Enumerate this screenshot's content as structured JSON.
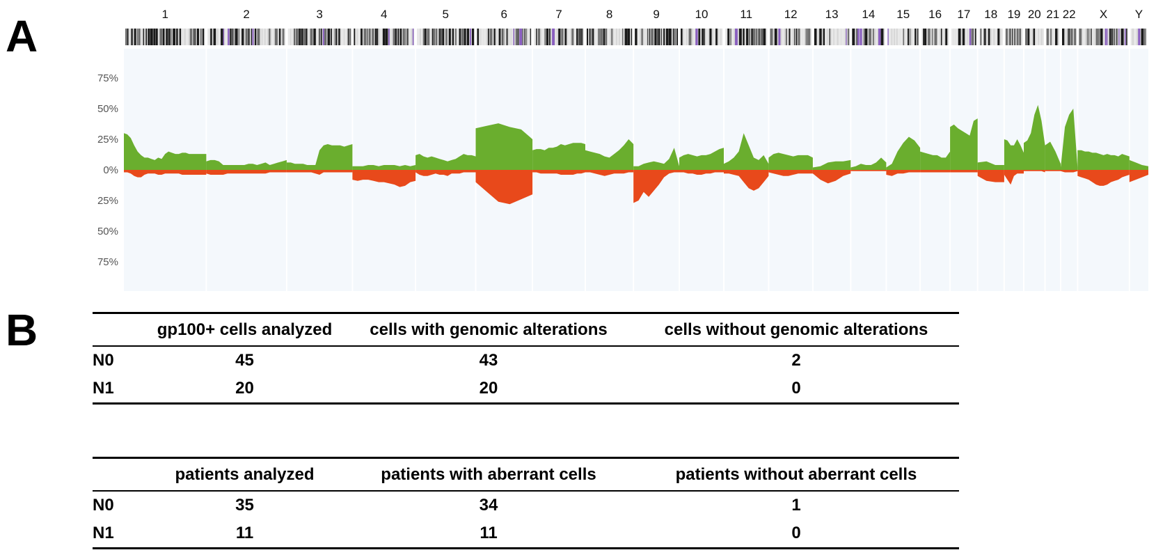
{
  "panels": {
    "a": "A",
    "b": "B"
  },
  "chart_data": {
    "type": "area",
    "title": "",
    "xlabel": "",
    "ylabel": "",
    "chromosomes": [
      "1",
      "2",
      "3",
      "4",
      "5",
      "6",
      "7",
      "8",
      "9",
      "10",
      "11",
      "12",
      "13",
      "14",
      "15",
      "16",
      "17",
      "18",
      "19",
      "20",
      "21",
      "22",
      "X",
      "Y"
    ],
    "chromosome_relative_sizes": [
      248,
      242,
      198,
      190,
      181,
      171,
      159,
      145,
      138,
      134,
      135,
      133,
      114,
      107,
      102,
      90,
      83,
      80,
      59,
      64,
      47,
      51,
      156,
      57
    ],
    "yticks": [
      "75%",
      "50%",
      "25%",
      "0%",
      "25%",
      "50%",
      "75%"
    ],
    "ylim": [
      -75,
      75
    ],
    "grid": true,
    "colors": {
      "gain": "#6aae2e",
      "loss": "#e8491b",
      "background": "#f4f8fc",
      "grid": "#ffffff"
    },
    "series": [
      {
        "name": "gain",
        "values_per_chromosome": [
          [
            30,
            29,
            26,
            20,
            15,
            12,
            10,
            10,
            9,
            8,
            10,
            9,
            13,
            15,
            14,
            13,
            13,
            14,
            14,
            13,
            13,
            13,
            13,
            13,
            13
          ],
          [
            7,
            8,
            8,
            7,
            4,
            4,
            4,
            4,
            4,
            4,
            5,
            5,
            4,
            5,
            6,
            4,
            5,
            6,
            7,
            8
          ],
          [
            6,
            6,
            5,
            5,
            5,
            4,
            4,
            4,
            16,
            20,
            21,
            20,
            20,
            20,
            19,
            20,
            21
          ],
          [
            3,
            3,
            3,
            4,
            4,
            3,
            4,
            4,
            4,
            3,
            4,
            3,
            4
          ],
          [
            12,
            13,
            11,
            10,
            11,
            10,
            9,
            8,
            7,
            8,
            9,
            11,
            13,
            12,
            12,
            11
          ],
          [
            34,
            36,
            38,
            35,
            33,
            25
          ],
          [
            16,
            17,
            17,
            16,
            18,
            18,
            19,
            21,
            20,
            21,
            22,
            22,
            22,
            21
          ],
          [
            16,
            15,
            14,
            13,
            11,
            10,
            13,
            16,
            20,
            25,
            21
          ],
          [
            3,
            3,
            5,
            6,
            7,
            6,
            5,
            9,
            18,
            3
          ],
          [
            10,
            12,
            13,
            12,
            11,
            12,
            12,
            13,
            15,
            17,
            18
          ],
          [
            5,
            7,
            10,
            15,
            30,
            20,
            10,
            8,
            12,
            5
          ],
          [
            10,
            13,
            14,
            13,
            12,
            11,
            12,
            12,
            12,
            10
          ],
          [
            2,
            3,
            6,
            7,
            7,
            8
          ],
          [
            2,
            3,
            5,
            4,
            4,
            6,
            10,
            6
          ],
          [
            2,
            5,
            15,
            22,
            27,
            24,
            18
          ],
          [
            15,
            14,
            13,
            12,
            12,
            10,
            10,
            15
          ],
          [
            35,
            37,
            34,
            32,
            30,
            28,
            40,
            42
          ],
          [
            6,
            7,
            4,
            4
          ],
          [
            25,
            24,
            20,
            20,
            25,
            20,
            14
          ],
          [
            22,
            24,
            30,
            45,
            53,
            40,
            20
          ],
          [
            20,
            23,
            15,
            5
          ],
          [
            2,
            35,
            45,
            50,
            2
          ],
          [
            16,
            16,
            15,
            15,
            14,
            14,
            13,
            12,
            13,
            12,
            12,
            11,
            13,
            12,
            11
          ],
          [
            8,
            6,
            4,
            3
          ]
        ]
      },
      {
        "name": "loss",
        "values_per_chromosome": [
          [
            2,
            2,
            3,
            5,
            6,
            6,
            4,
            3,
            3,
            3,
            4,
            4,
            3,
            3,
            3,
            3,
            3,
            4,
            4,
            4,
            4,
            4,
            4,
            4,
            4
          ],
          [
            3,
            4,
            4,
            4,
            4,
            3,
            3,
            3,
            3,
            3,
            3,
            3,
            3,
            3,
            3,
            2,
            2,
            2,
            2,
            2
          ],
          [
            2,
            2,
            2,
            2,
            2,
            2,
            2,
            3,
            4,
            2,
            2,
            2,
            2,
            2,
            2,
            2,
            2
          ],
          [
            8,
            9,
            8,
            8,
            9,
            10,
            10,
            11,
            12,
            14,
            13,
            10,
            9
          ],
          [
            2,
            4,
            5,
            5,
            4,
            3,
            4,
            4,
            5,
            3,
            3,
            3,
            2,
            2,
            2,
            2
          ],
          [
            10,
            18,
            26,
            28,
            24,
            20
          ],
          [
            2,
            2,
            3,
            3,
            3,
            3,
            3,
            4,
            4,
            4,
            4,
            3,
            3,
            2
          ],
          [
            2,
            2,
            3,
            4,
            5,
            4,
            3,
            3,
            3,
            2,
            2
          ],
          [
            27,
            25,
            18,
            22,
            17,
            12,
            6,
            3,
            2,
            2
          ],
          [
            2,
            2,
            3,
            3,
            4,
            4,
            3,
            3,
            2,
            2,
            2
          ],
          [
            3,
            3,
            4,
            5,
            10,
            15,
            17,
            15,
            10,
            5
          ],
          [
            2,
            3,
            4,
            5,
            5,
            4,
            3,
            3,
            3,
            3
          ],
          [
            3,
            8,
            11,
            9,
            5,
            3
          ],
          [
            1,
            1,
            1,
            1,
            1,
            1,
            1,
            1
          ],
          [
            4,
            5,
            3,
            3,
            2,
            2,
            2
          ],
          [
            2,
            2,
            2,
            2,
            2,
            2,
            2,
            2
          ],
          [
            2,
            2,
            2,
            2,
            2,
            2,
            2,
            2
          ],
          [
            5,
            9,
            10,
            10
          ],
          [
            4,
            8,
            12,
            5,
            3,
            3,
            3
          ],
          [
            1,
            1,
            1,
            1,
            1,
            1,
            2
          ],
          [
            1,
            1,
            1,
            1
          ],
          [
            1,
            2,
            2,
            2,
            1
          ],
          [
            5,
            6,
            7,
            8,
            10,
            12,
            13,
            13,
            12,
            10,
            9,
            8,
            6,
            5,
            4
          ],
          [
            10,
            8,
            6,
            4
          ]
        ]
      }
    ]
  },
  "tables": [
    {
      "headers": [
        "",
        "gp100+ cells analyzed",
        "cells with genomic alterations",
        "cells without genomic alterations"
      ],
      "rows": [
        [
          "N0",
          "45",
          "43",
          "2"
        ],
        [
          "N1",
          "20",
          "20",
          "0"
        ]
      ]
    },
    {
      "headers": [
        "",
        "patients analyzed",
        "patients with aberrant cells",
        "patients without aberrant cells"
      ],
      "rows": [
        [
          "N0",
          "35",
          "34",
          "1"
        ],
        [
          "N1",
          "11",
          "11",
          "0"
        ]
      ]
    }
  ]
}
